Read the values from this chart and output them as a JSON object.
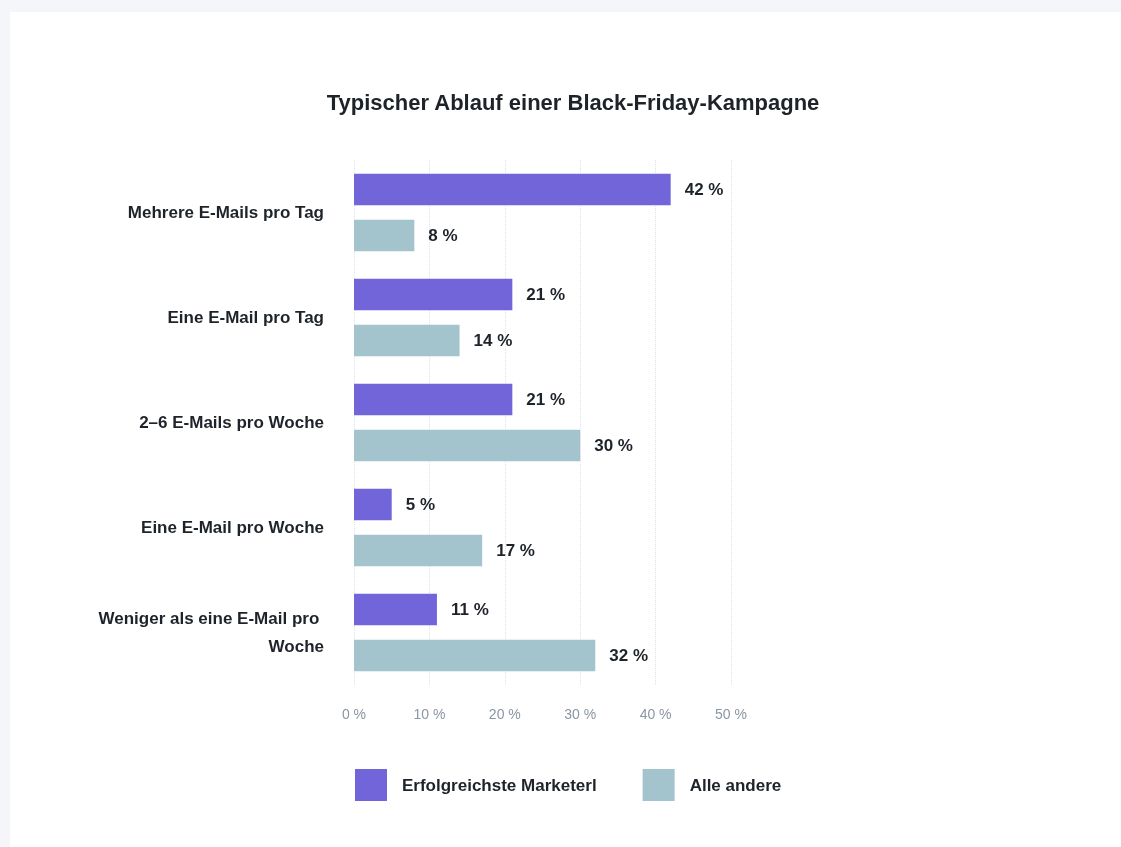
{
  "chart_data": {
    "type": "bar",
    "orientation": "horizontal",
    "title": "Typischer Ablauf einer Black-Friday-Kampagne",
    "categories": [
      "Mehrere E-Mails pro Tag",
      "Eine E-Mail pro Tag",
      "2–6 E-Mails pro Woche",
      "Eine E-Mail pro Woche",
      "Weniger als eine E-Mail pro Woche"
    ],
    "series": [
      {
        "name": "Erfolgreichste Marketerl",
        "color": "#7165d9",
        "values": [
          42,
          21,
          21,
          5,
          11
        ],
        "value_labels": [
          "42 %",
          "21 %",
          "21 %",
          "5 %",
          "11 %"
        ]
      },
      {
        "name": "Alle andere",
        "color": "#a3c4cd",
        "values": [
          8,
          14,
          30,
          17,
          32
        ],
        "value_labels": [
          "8 %",
          "14 %",
          "30 %",
          "17 %",
          "32 %"
        ]
      }
    ],
    "xlim": [
      0,
      50
    ],
    "xticks": [
      {
        "value": 0,
        "label": "0 %"
      },
      {
        "value": 10,
        "label": "10 %"
      },
      {
        "value": 20,
        "label": "20 %"
      },
      {
        "value": 30,
        "label": "30 %"
      },
      {
        "value": 40,
        "label": "40 %"
      },
      {
        "value": 50,
        "label": "50 %"
      }
    ],
    "grid": "x",
    "legend": "bottom"
  }
}
